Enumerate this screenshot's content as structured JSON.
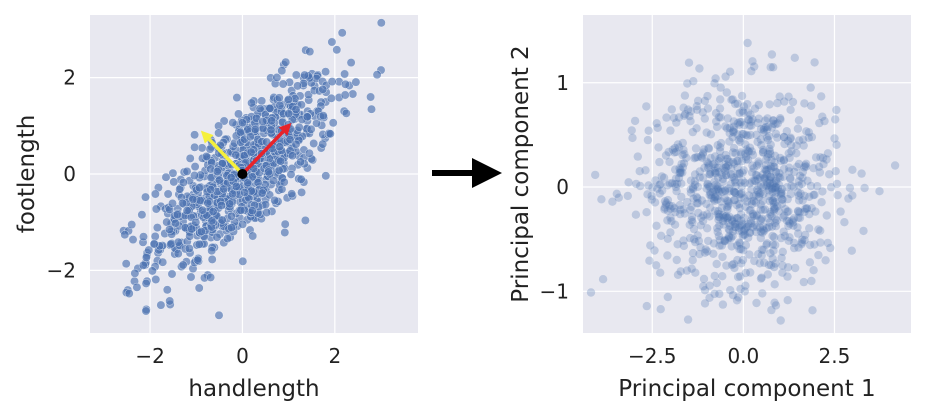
{
  "chart_data": [
    {
      "type": "scatter",
      "xlabel": "handlength",
      "ylabel": "footlength",
      "xlim": [
        -3.3,
        3.8
      ],
      "ylim": [
        -3.3,
        3.3
      ],
      "xticks": [
        -2,
        0,
        2
      ],
      "yticks": [
        -2,
        0,
        2
      ],
      "xtick_labels": [
        "−2",
        "0",
        "2"
      ],
      "ytick_labels": [
        "−2",
        "0",
        "2"
      ],
      "grid": true,
      "point_color": "#4c72b0",
      "point_alpha": 0.65,
      "n_points": 900,
      "approx_correlation": 0.75,
      "origin_marker": {
        "x": 0,
        "y": 0,
        "color": "#000000"
      },
      "arrows": [
        {
          "color": "#e8232a",
          "from": [
            0,
            0
          ],
          "to": [
            1.06,
            1.06
          ]
        },
        {
          "color": "#f5f03c",
          "from": [
            0,
            0
          ],
          "to": [
            -0.9,
            0.9
          ]
        }
      ]
    },
    {
      "type": "scatter",
      "xlabel": "Principal component 1",
      "ylabel": "Principal component 2",
      "xlim": [
        -4.4,
        4.6
      ],
      "ylim": [
        -1.4,
        1.65
      ],
      "xticks": [
        -2.5,
        0.0,
        2.5
      ],
      "yticks": [
        -1,
        0,
        1
      ],
      "xtick_labels": [
        "−2.5",
        "0.0",
        "2.5"
      ],
      "ytick_labels": [
        "−1",
        "0",
        "1"
      ],
      "grid": true,
      "point_color": "#4c72b0",
      "point_alpha": 0.28,
      "n_points": 900,
      "x_std": 1.3,
      "y_std": 0.48
    }
  ],
  "transition_arrow": {
    "color": "#000000",
    "direction": "right"
  }
}
